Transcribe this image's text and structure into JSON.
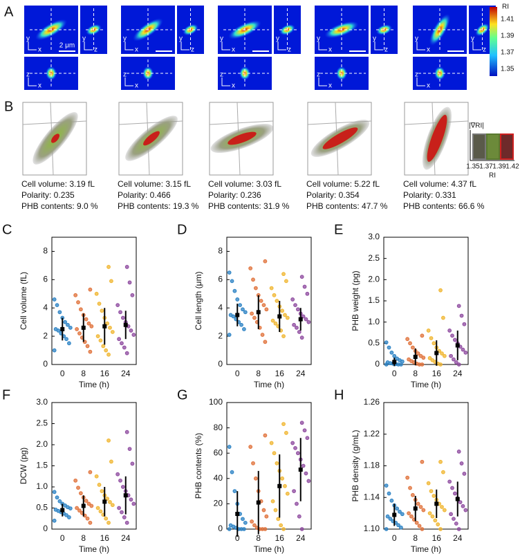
{
  "panel_a": {
    "label": "A",
    "axis_names": {
      "x": "x",
      "y": "y",
      "z": "z"
    },
    "scale_bar": "2 μm",
    "colorbar": {
      "title": "RI",
      "ticks": [
        "1.41",
        "1.39",
        "1.37",
        "1.35"
      ]
    }
  },
  "panel_b": {
    "label": "B",
    "cells": [
      {
        "volume": "Cell volume: 3.19 fL",
        "polarity": "Polarity: 0.235",
        "phb": "PHB contents: 9.0 %"
      },
      {
        "volume": "Cell volume: 3.15 fL",
        "polarity": "Polarity: 0.466",
        "phb": "PHB contents: 19.3 %"
      },
      {
        "volume": "Cell volume: 3.03 fL",
        "polarity": "Polarity: 0.236",
        "phb": "PHB contents: 31.9 %"
      },
      {
        "volume": "Cell volume: 5.22 fL",
        "polarity": "Polarity: 0.354",
        "phb": "PHB contents: 47.7 %"
      },
      {
        "volume": "Cell volume: 4.37 fL",
        "polarity": "Polarity: 0.331",
        "phb": "PHB contents: 66.6 %"
      }
    ],
    "legend": {
      "title": "|∇RI|",
      "ticks": [
        "1.35",
        "1.37",
        "1.39",
        "1.42"
      ],
      "axis_title": "RI"
    }
  },
  "chart_data": [
    {
      "type": "strip",
      "panel": "C",
      "ylabel": "Cell volume (fL)",
      "xlabel": "Time (h)",
      "categories": [
        "0",
        "8",
        "16",
        "24"
      ],
      "ylim": [
        0,
        9
      ],
      "yticks": [
        0,
        2,
        4,
        6,
        8
      ],
      "groups": [
        {
          "color": "#2b82c4",
          "mean": 2.5,
          "sd": 0.8,
          "values": [
            1.0,
            1.5,
            1.8,
            2.0,
            2.2,
            2.4,
            2.5,
            2.6,
            2.8,
            3.0,
            3.3,
            3.7,
            4.2,
            4.6
          ]
        },
        {
          "color": "#e0713a",
          "mean": 2.6,
          "sd": 1.0,
          "values": [
            0.9,
            1.3,
            1.6,
            1.9,
            2.2,
            2.5,
            2.7,
            2.9,
            3.2,
            3.5,
            3.9,
            4.4,
            4.9,
            5.3
          ]
        },
        {
          "color": "#f0b630",
          "mean": 2.7,
          "sd": 1.3,
          "values": [
            0.7,
            1.0,
            1.3,
            1.7,
            2.0,
            2.3,
            2.6,
            2.9,
            3.3,
            3.8,
            4.3,
            5.0,
            5.9,
            6.9
          ]
        },
        {
          "color": "#8e4a9f",
          "mean": 2.8,
          "sd": 1.0,
          "values": [
            0.8,
            1.2,
            1.5,
            1.8,
            2.1,
            2.4,
            2.7,
            3.0,
            3.3,
            3.7,
            4.2,
            4.9,
            5.8,
            6.9
          ]
        }
      ]
    },
    {
      "type": "strip",
      "panel": "D",
      "ylabel": "Cell length (μm)",
      "xlabel": "Time (h)",
      "categories": [
        "0",
        "8",
        "16",
        "24"
      ],
      "ylim": [
        0,
        9
      ],
      "yticks": [
        0,
        2,
        4,
        6,
        8
      ],
      "groups": [
        {
          "color": "#2b82c4",
          "mean": 3.5,
          "sd": 0.8,
          "values": [
            2.1,
            2.5,
            2.8,
            3.0,
            3.2,
            3.4,
            3.5,
            3.7,
            3.9,
            4.2,
            4.6,
            5.2,
            5.9,
            6.5
          ]
        },
        {
          "color": "#e0713a",
          "mean": 3.7,
          "sd": 1.2,
          "values": [
            1.6,
            2.1,
            2.6,
            3.0,
            3.3,
            3.6,
            3.9,
            4.2,
            4.5,
            4.9,
            5.4,
            6.0,
            6.8,
            7.3
          ]
        },
        {
          "color": "#f0b630",
          "mean": 3.4,
          "sd": 1.1,
          "values": [
            2.0,
            2.4,
            2.7,
            2.9,
            3.1,
            3.3,
            3.5,
            3.8,
            4.1,
            4.5,
            4.9,
            5.4,
            5.9,
            6.4
          ]
        },
        {
          "color": "#8e4a9f",
          "mean": 3.2,
          "sd": 0.8,
          "values": [
            1.9,
            2.3,
            2.6,
            2.8,
            3.0,
            3.2,
            3.4,
            3.6,
            3.9,
            4.2,
            4.6,
            5.0,
            5.5,
            6.2
          ]
        }
      ]
    },
    {
      "type": "strip",
      "panel": "E",
      "ylabel": "PHB weight (pg)",
      "xlabel": "Time (h)",
      "categories": [
        "0",
        "8",
        "16",
        "24"
      ],
      "ylim": [
        0,
        3
      ],
      "yticks": [
        0,
        0.5,
        {
          "value": 1,
          "label": "1.0"
        },
        1.5,
        {
          "value": 2,
          "label": "2.0"
        },
        2.5,
        {
          "value": 3,
          "label": "3.0"
        }
      ],
      "groups": [
        {
          "color": "#2b82c4",
          "mean": 0.06,
          "sd": 0.1,
          "values": [
            0,
            0,
            0,
            0.01,
            0.02,
            0.03,
            0.05,
            0.07,
            0.1,
            0.14,
            0.2,
            0.28,
            0.4,
            0.52
          ]
        },
        {
          "color": "#e0713a",
          "mean": 0.18,
          "sd": 0.2,
          "values": [
            0,
            0,
            0.02,
            0.05,
            0.08,
            0.12,
            0.16,
            0.2,
            0.26,
            0.32,
            0.4,
            0.5,
            0.6,
            0.68
          ]
        },
        {
          "color": "#f0b630",
          "mean": 0.27,
          "sd": 0.3,
          "values": [
            0,
            0.02,
            0.06,
            0.1,
            0.15,
            0.2,
            0.26,
            0.32,
            0.4,
            0.5,
            0.62,
            0.8,
            1.1,
            1.75
          ]
        },
        {
          "color": "#8e4a9f",
          "mean": 0.45,
          "sd": 0.35,
          "values": [
            0,
            0.05,
            0.12,
            0.2,
            0.28,
            0.35,
            0.42,
            0.5,
            0.58,
            0.68,
            0.8,
            0.95,
            1.15,
            1.38
          ]
        }
      ]
    },
    {
      "type": "strip",
      "panel": "F",
      "ylabel": "DCW (pg)",
      "xlabel": "Time (h)",
      "categories": [
        "0",
        "8",
        "16",
        "24"
      ],
      "ylim": [
        0,
        3
      ],
      "yticks": [
        0,
        0.5,
        {
          "value": 1,
          "label": "1.0"
        },
        1.5,
        {
          "value": 2,
          "label": "2.0"
        },
        2.5,
        {
          "value": 3,
          "label": "3.0"
        }
      ],
      "groups": [
        {
          "color": "#2b82c4",
          "mean": 0.45,
          "sd": 0.15,
          "values": [
            0.2,
            0.28,
            0.33,
            0.37,
            0.4,
            0.43,
            0.46,
            0.49,
            0.52,
            0.56,
            0.6,
            0.66,
            0.75,
            0.88
          ]
        },
        {
          "color": "#e0713a",
          "mean": 0.55,
          "sd": 0.25,
          "values": [
            0.15,
            0.25,
            0.32,
            0.38,
            0.44,
            0.5,
            0.55,
            0.6,
            0.67,
            0.75,
            0.85,
            0.98,
            1.15,
            1.35
          ]
        },
        {
          "color": "#f0b630",
          "mean": 0.65,
          "sd": 0.35,
          "values": [
            0.15,
            0.25,
            0.34,
            0.42,
            0.5,
            0.57,
            0.64,
            0.72,
            0.8,
            0.9,
            1.05,
            1.25,
            1.6,
            2.1
          ]
        },
        {
          "color": "#8e4a9f",
          "mean": 0.8,
          "sd": 0.45,
          "values": [
            0.15,
            0.28,
            0.4,
            0.5,
            0.6,
            0.7,
            0.8,
            0.9,
            1.0,
            1.15,
            1.3,
            1.55,
            1.9,
            2.3
          ]
        }
      ]
    },
    {
      "type": "strip",
      "panel": "G",
      "ylabel": "PHB contents (%)",
      "xlabel": "Time (h)",
      "categories": [
        "0",
        "8",
        "16",
        "24"
      ],
      "ylim": [
        0,
        100
      ],
      "yticks": [
        0,
        20,
        40,
        60,
        80,
        100
      ],
      "groups": [
        {
          "color": "#2b82c4",
          "mean": 12,
          "sd": 18,
          "values": [
            0,
            0,
            0,
            0,
            1,
            2,
            3,
            5,
            8,
            12,
            20,
            30,
            45,
            65
          ]
        },
        {
          "color": "#e0713a",
          "mean": 21,
          "sd": 25,
          "values": [
            0,
            0,
            0,
            1,
            3,
            6,
            10,
            15,
            22,
            30,
            40,
            52,
            65,
            74
          ]
        },
        {
          "color": "#f0b630",
          "mean": 34,
          "sd": 25,
          "values": [
            0,
            3,
            8,
            15,
            22,
            28,
            34,
            40,
            46,
            52,
            60,
            68,
            76,
            83
          ]
        },
        {
          "color": "#8e4a9f",
          "mean": 47,
          "sd": 25,
          "values": [
            0,
            10,
            20,
            30,
            38,
            44,
            50,
            55,
            60,
            64,
            68,
            72,
            78,
            84
          ]
        }
      ]
    },
    {
      "type": "strip",
      "panel": "H",
      "ylabel": "PHB density (g/mL)",
      "xlabel": "Time (h)",
      "categories": [
        "0",
        "8",
        "16",
        "24"
      ],
      "ylim": [
        1.1,
        1.26
      ],
      "yticks": [
        {
          "value": 1.1,
          "label": "1.10"
        },
        1.14,
        1.18,
        1.22,
        1.26
      ],
      "groups": [
        {
          "color": "#2b82c4",
          "mean": 1.118,
          "sd": 0.014,
          "values": [
            1.1,
            1.102,
            1.105,
            1.108,
            1.11,
            1.113,
            1.116,
            1.119,
            1.122,
            1.126,
            1.13,
            1.136,
            1.145,
            1.155
          ]
        },
        {
          "color": "#e0713a",
          "mean": 1.126,
          "sd": 0.016,
          "values": [
            1.1,
            1.104,
            1.108,
            1.112,
            1.116,
            1.12,
            1.124,
            1.128,
            1.132,
            1.137,
            1.143,
            1.152,
            1.165,
            1.185
          ]
        },
        {
          "color": "#f0b630",
          "mean": 1.132,
          "sd": 0.018,
          "values": [
            1.1,
            1.106,
            1.111,
            1.116,
            1.12,
            1.124,
            1.128,
            1.132,
            1.137,
            1.142,
            1.148,
            1.158,
            1.172,
            1.185
          ]
        },
        {
          "color": "#8e4a9f",
          "mean": 1.138,
          "sd": 0.022,
          "values": [
            1.1,
            1.107,
            1.113,
            1.119,
            1.124,
            1.129,
            1.134,
            1.139,
            1.145,
            1.152,
            1.16,
            1.17,
            1.183,
            1.198
          ]
        }
      ]
    }
  ]
}
